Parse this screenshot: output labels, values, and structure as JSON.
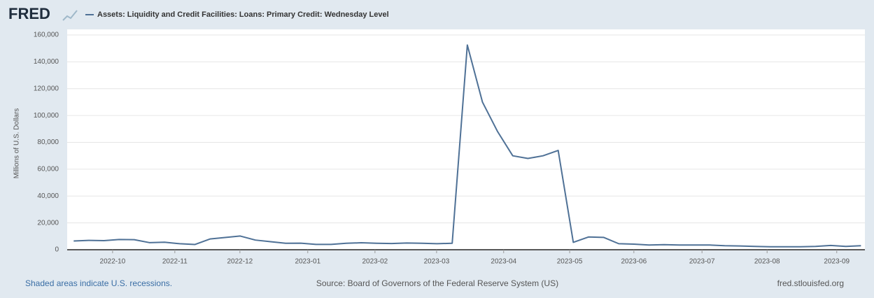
{
  "logo": "FRED",
  "chart_data": {
    "type": "line",
    "series": [
      {
        "name": "Assets: Liquidity and Credit Facilities: Loans: Primary Credit: Wednesday Level",
        "color": "#4f7196",
        "values": [
          6500,
          7000,
          6800,
          7600,
          7500,
          5300,
          5600,
          4500,
          3900,
          8000,
          9100,
          10200,
          7200,
          6000,
          4800,
          4900,
          4000,
          4000,
          4800,
          5200,
          4800,
          4600,
          5000,
          4800,
          4500,
          4800,
          152500,
          110000,
          88000,
          70000,
          68000,
          70000,
          74000,
          5500,
          9500,
          9200,
          4500,
          4200,
          3500,
          3800,
          3500,
          3500,
          3500,
          3000,
          2800,
          2500,
          2200,
          2200,
          2200,
          2500,
          3200,
          2500,
          3000
        ]
      }
    ],
    "categories": [
      null,
      null,
      null,
      null,
      null,
      null,
      null,
      null,
      null,
      null,
      null,
      null,
      null,
      null,
      null,
      null,
      null,
      null,
      null,
      null,
      null,
      null,
      null,
      null,
      null,
      null,
      null,
      null,
      null,
      null,
      null,
      null,
      null,
      null,
      null,
      null,
      null,
      null,
      null,
      null,
      null,
      null,
      null,
      null,
      null,
      null,
      null,
      null,
      null,
      null,
      null,
      null,
      null
    ],
    "xlim": [
      -0.43,
      52.26
    ],
    "xticks": [
      {
        "value": 2.57,
        "label": "2022-10"
      },
      {
        "value": 6.68,
        "label": "2022-11"
      },
      {
        "value": 10.98,
        "label": "2022-12"
      },
      {
        "value": 15.46,
        "label": "2023-01"
      },
      {
        "value": 19.9,
        "label": "2023-02"
      },
      {
        "value": 23.97,
        "label": "2023-03"
      },
      {
        "value": 28.4,
        "label": "2023-04"
      },
      {
        "value": 32.76,
        "label": "2023-05"
      },
      {
        "value": 37.0,
        "label": "2023-06"
      },
      {
        "value": 41.5,
        "label": "2023-07"
      },
      {
        "value": 45.8,
        "label": "2023-08"
      },
      {
        "value": 50.4,
        "label": "2023-09"
      }
    ],
    "ylim": [
      0,
      160000
    ],
    "yticks": [
      0,
      {
        "value": 20000,
        "label": "20,000"
      },
      {
        "value": 40000,
        "label": "40,000"
      },
      {
        "value": 60000,
        "label": "60,000"
      },
      {
        "value": 80000,
        "label": "80,000"
      },
      {
        "value": 100000,
        "label": "100,000"
      },
      {
        "value": 120000,
        "label": "120,000"
      },
      {
        "value": 140000,
        "label": "140,000"
      },
      {
        "value": 160000,
        "label": "160,000"
      }
    ],
    "ylabel": "Millions of U.S. Dollars",
    "grid": true,
    "footer_left": "Shaded areas indicate U.S. recessions.",
    "source": "Source: Board of Governors of the Federal Reserve System (US)",
    "footer_right": "fred.stlouisfed.org"
  }
}
